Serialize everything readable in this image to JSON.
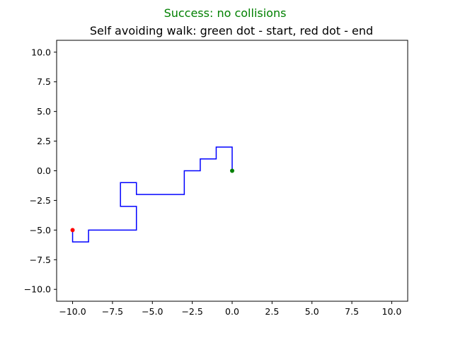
{
  "suptitle": "Success: no collisions",
  "chart_data": {
    "type": "line",
    "title": "Self avoiding walk: green dot - start, red dot - end",
    "xlabel": "",
    "ylabel": "",
    "xlim": [
      -11,
      11
    ],
    "ylim": [
      -11,
      11
    ],
    "xticks": [
      -10.0,
      -7.5,
      -5.0,
      -2.5,
      0.0,
      2.5,
      5.0,
      7.5,
      10.0
    ],
    "yticks": [
      -10.0,
      -7.5,
      -5.0,
      -2.5,
      0.0,
      2.5,
      5.0,
      7.5,
      10.0
    ],
    "xtick_labels": [
      "−10.0",
      "−7.5",
      "−5.0",
      "−2.5",
      "0.0",
      "2.5",
      "5.0",
      "7.5",
      "10.0"
    ],
    "ytick_labels": [
      "−10.0",
      "−7.5",
      "−5.0",
      "−2.5",
      "0.0",
      "2.5",
      "5.0",
      "7.5",
      "10.0"
    ],
    "grid": false,
    "series": [
      {
        "x": [
          0,
          0,
          -1,
          -1,
          -2,
          -2,
          -3,
          -3,
          -6,
          -6,
          -7,
          -7,
          -6,
          -6,
          -9,
          -9,
          -10,
          -10
        ],
        "y": [
          0,
          2,
          2,
          1,
          1,
          0,
          0,
          -2,
          -2,
          -1,
          -1,
          -3,
          -3,
          -5,
          -5,
          -6,
          -6,
          -5
        ],
        "color": "#0000ff"
      }
    ],
    "markers": [
      {
        "x": 0,
        "y": 0,
        "color": "#008000"
      },
      {
        "x": -10,
        "y": -5,
        "color": "#ff0000"
      }
    ]
  },
  "colors": {
    "suptitle": "#008000",
    "axes": "#000000",
    "background": "#ffffff"
  }
}
